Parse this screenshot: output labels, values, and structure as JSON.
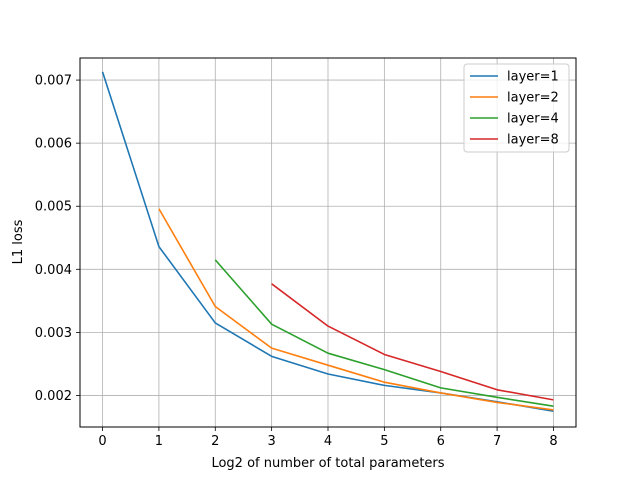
{
  "chart_data": {
    "type": "line",
    "title": "",
    "xlabel": "Log2 of number of total parameters",
    "ylabel": "L1 loss",
    "xlim": [
      -0.4,
      8.4
    ],
    "ylim": [
      0.0015,
      0.00735
    ],
    "xticks": [
      0,
      1,
      2,
      3,
      4,
      5,
      6,
      7,
      8
    ],
    "xtick_labels": [
      "0",
      "1",
      "2",
      "3",
      "4",
      "5",
      "6",
      "7",
      "8"
    ],
    "yticks": [
      0.002,
      0.003,
      0.004,
      0.005,
      0.006,
      0.007
    ],
    "ytick_labels": [
      "0.002",
      "0.003",
      "0.004",
      "0.005",
      "0.006",
      "0.007"
    ],
    "grid": true,
    "legend_position": "top-right",
    "series": [
      {
        "name": "layer=1",
        "color": "#1f77b4",
        "x": [
          0,
          1,
          2,
          3,
          4,
          5,
          6,
          7,
          8
        ],
        "y": [
          0.00713,
          0.00436,
          0.00315,
          0.00262,
          0.00234,
          0.00216,
          0.00204,
          0.0019,
          0.00175
        ]
      },
      {
        "name": "layer=2",
        "color": "#ff7f0e",
        "x": [
          1,
          2,
          3,
          4,
          5,
          6,
          7,
          8
        ],
        "y": [
          0.00496,
          0.00341,
          0.00275,
          0.00248,
          0.00221,
          0.00204,
          0.00189,
          0.00177
        ]
      },
      {
        "name": "layer=4",
        "color": "#2ca02c",
        "x": [
          2,
          3,
          4,
          5,
          6,
          7,
          8
        ],
        "y": [
          0.00415,
          0.00313,
          0.00267,
          0.00241,
          0.00212,
          0.00197,
          0.00183
        ]
      },
      {
        "name": "layer=8",
        "color": "#d62728",
        "x": [
          3,
          4,
          5,
          6,
          7,
          8
        ],
        "y": [
          0.00377,
          0.0031,
          0.00265,
          0.00238,
          0.00209,
          0.00193
        ]
      }
    ]
  }
}
